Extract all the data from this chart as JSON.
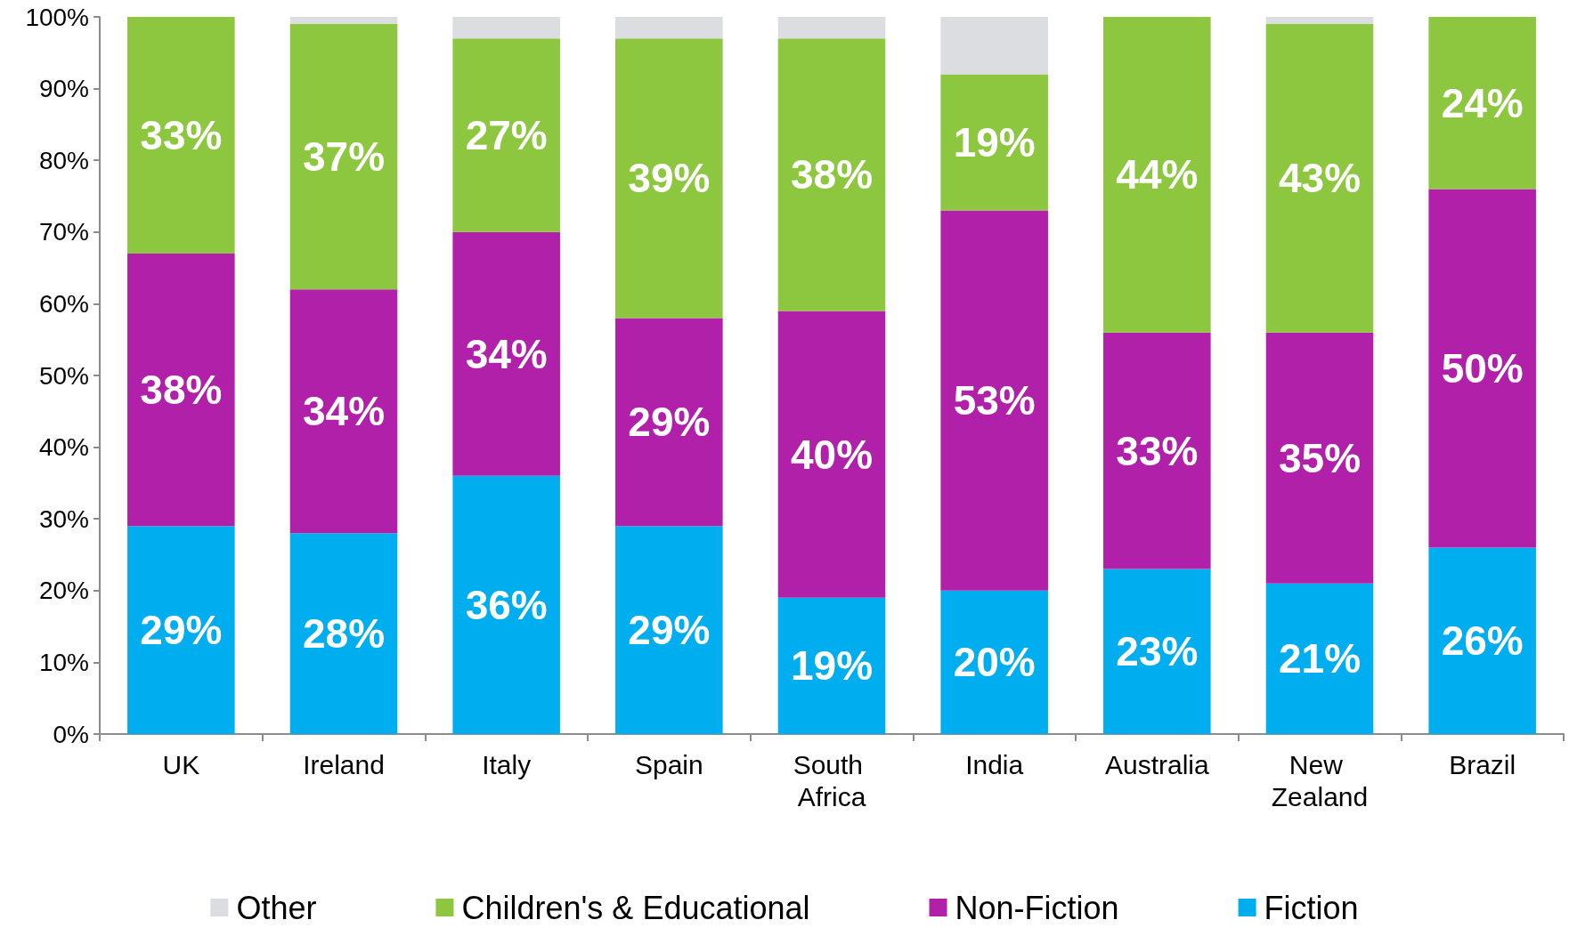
{
  "chart_data": {
    "type": "bar",
    "stacked": true,
    "categories": [
      "UK",
      "Ireland",
      "Italy",
      "Spain",
      "South Africa",
      "India",
      "Australia",
      "New Zealand",
      "Brazil"
    ],
    "series": [
      {
        "name": "Fiction",
        "color": "#00aeef",
        "values": [
          29,
          28,
          36,
          29,
          19,
          20,
          23,
          21,
          26
        ],
        "value_labels": [
          "29%",
          "28%",
          "36%",
          "29%",
          "19%",
          "20%",
          "23%",
          "21%",
          "26%"
        ]
      },
      {
        "name": "Non-Fiction",
        "color": "#b020a8",
        "values": [
          38,
          34,
          34,
          29,
          40,
          53,
          33,
          35,
          50
        ],
        "value_labels": [
          "38%",
          "34%",
          "34%",
          "29%",
          "40%",
          "53%",
          "33%",
          "35%",
          "50%"
        ]
      },
      {
        "name": "Children's & Educational",
        "color": "#8dc63f",
        "values": [
          33,
          37,
          27,
          39,
          38,
          19,
          44,
          43,
          24
        ],
        "value_labels": [
          "33%",
          "37%",
          "27%",
          "39%",
          "38%",
          "19%",
          "44%",
          "43%",
          "24%"
        ]
      },
      {
        "name": "Other",
        "color": "#dcdde0",
        "values": [
          0,
          1,
          3,
          3,
          3,
          8,
          0,
          1,
          0
        ]
      }
    ],
    "ylim": [
      0,
      100
    ],
    "yticks": [
      {
        "value": 0,
        "label": "0%"
      },
      {
        "value": 10,
        "label": "10%"
      },
      {
        "value": 20,
        "label": "20%"
      },
      {
        "value": 30,
        "label": "30%"
      },
      {
        "value": 40,
        "label": "40%"
      },
      {
        "value": 50,
        "label": "50%"
      },
      {
        "value": 60,
        "label": "60%"
      },
      {
        "value": 70,
        "label": "70%"
      },
      {
        "value": 80,
        "label": "80%"
      },
      {
        "value": 90,
        "label": "90%"
      },
      {
        "value": 100,
        "label": "100%"
      }
    ],
    "legend": "bottom"
  }
}
